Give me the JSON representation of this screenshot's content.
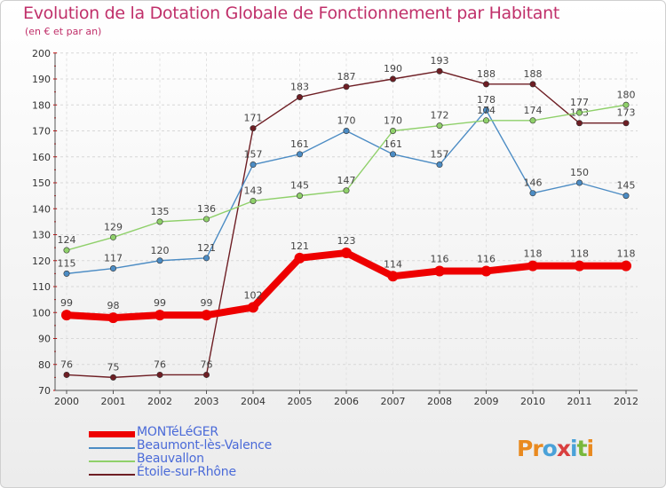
{
  "title": "Evolution de la Dotation Globale de Fonctionnement par Habitant",
  "subtitle": "(en € et par an)",
  "logo": {
    "letters": [
      "P",
      "r",
      "o",
      "x",
      "i",
      "t",
      "i"
    ],
    "colors": [
      "#e98a1f",
      "#e98a1f",
      "#4aa1d8",
      "#d93f3f",
      "#4aa1d8",
      "#78b83c",
      "#e98a1f"
    ]
  },
  "chart_data": {
    "type": "line",
    "title": "Evolution de la Dotation Globale de Fonctionnement par Habitant",
    "subtitle": "(en € et par an)",
    "xlabel": "",
    "ylabel": "",
    "ylim": [
      70,
      200
    ],
    "yticks": [
      70,
      80,
      90,
      100,
      110,
      120,
      130,
      140,
      150,
      160,
      170,
      180,
      190,
      200
    ],
    "grid": true,
    "categories": [
      "2000",
      "2001",
      "2002",
      "2003",
      "2004",
      "2005",
      "2006",
      "2007",
      "2008",
      "2009",
      "2010",
      "2011",
      "2012"
    ],
    "series": [
      {
        "name": "MONTéLéGER",
        "color": "#ee0000",
        "values": [
          99,
          98,
          99,
          99,
          102,
          121,
          123,
          114,
          116,
          116,
          118,
          118,
          118
        ]
      },
      {
        "name": "Beaumont-lès-Valence",
        "color": "#4c8cc4",
        "values": [
          115,
          117,
          120,
          121,
          157,
          161,
          170,
          161,
          157,
          178,
          146,
          150,
          145
        ]
      },
      {
        "name": "Beauvallon",
        "color": "#8fd06a",
        "values": [
          124,
          129,
          135,
          136,
          143,
          145,
          147,
          170,
          172,
          174,
          174,
          177,
          180
        ]
      },
      {
        "name": "Étoile-sur-Rhône",
        "color": "#6e1e24",
        "values": [
          76,
          75,
          76,
          76,
          171,
          183,
          187,
          190,
          193,
          188,
          188,
          173,
          173
        ]
      }
    ]
  }
}
